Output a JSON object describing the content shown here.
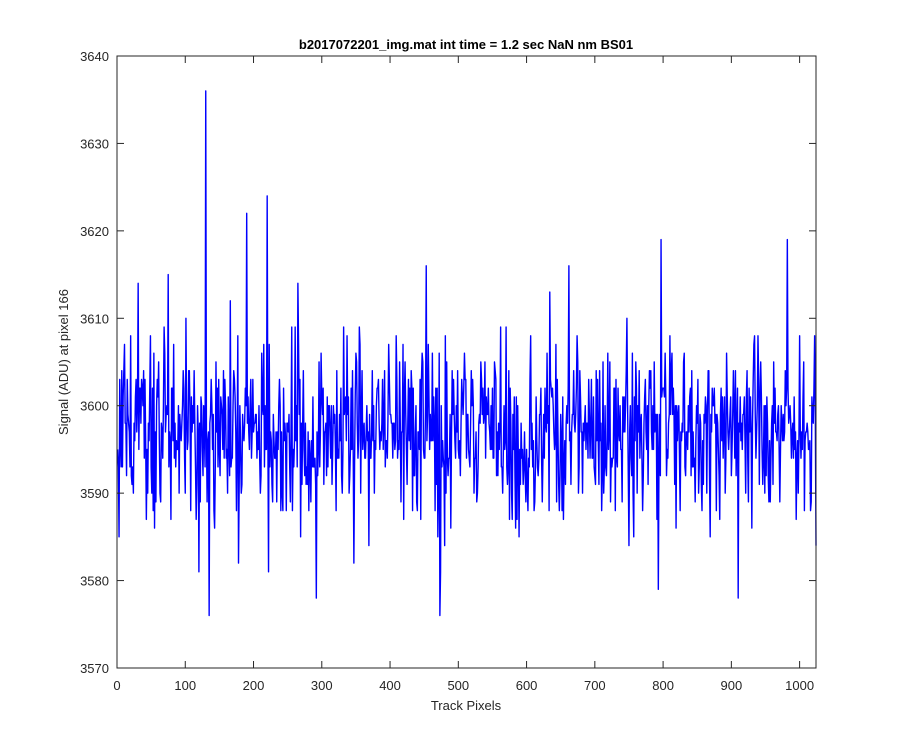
{
  "chart_data": {
    "type": "line",
    "title": "b2017072201_img.mat int time = 1.2 sec  NaN nm BS01",
    "xlabel": "Track Pixels",
    "ylabel": "Signal (ADU) at pixel 166",
    "xlim": [
      0,
      1024
    ],
    "ylim": [
      3570,
      3640
    ],
    "xticks": [
      0,
      100,
      200,
      300,
      400,
      500,
      600,
      700,
      800,
      900,
      1000
    ],
    "yticks": [
      3570,
      3580,
      3590,
      3600,
      3610,
      3620,
      3630,
      3640
    ],
    "grid": false,
    "line_color": "#0000ff",
    "series": [
      {
        "n_points": 1024,
        "seed": 1701,
        "mean": 3597,
        "spread": 5,
        "min": 3576,
        "max": 3636,
        "notable_points": [
          [
            130,
            3636
          ],
          [
            220,
            3624
          ],
          [
            190,
            3622
          ],
          [
            453,
            3616
          ],
          [
            75,
            3615
          ],
          [
            797,
            3619
          ],
          [
            982,
            3619
          ],
          [
            135,
            3576
          ],
          [
            473,
            3576
          ],
          [
            292,
            3578
          ],
          [
            910,
            3578
          ],
          [
            120,
            3581
          ],
          [
            178,
            3582
          ],
          [
            31,
            3614
          ],
          [
            265,
            3614
          ],
          [
            662,
            3616
          ],
          [
            20,
            3608
          ],
          [
            1000,
            3608
          ],
          [
            1024,
            3584
          ]
        ]
      }
    ]
  }
}
